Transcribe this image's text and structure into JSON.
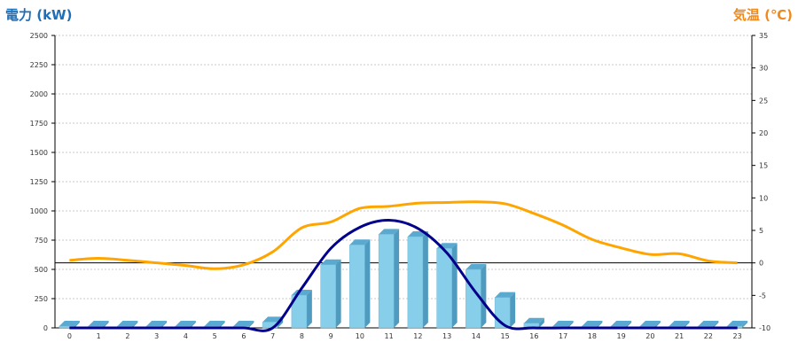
{
  "chart_data": {
    "type": "bar",
    "left_axis_title": "電力 (kW)",
    "right_axis_title": "気温 (℃)",
    "categories": [
      "0",
      "1",
      "2",
      "3",
      "4",
      "5",
      "6",
      "7",
      "8",
      "9",
      "10",
      "11",
      "12",
      "13",
      "14",
      "15",
      "16",
      "17",
      "18",
      "19",
      "20",
      "21",
      "22",
      "23"
    ],
    "ylim_left": [
      0,
      2500
    ],
    "yticks_left": [
      0,
      250,
      500,
      750,
      1000,
      1250,
      1500,
      1750,
      2000,
      2250,
      2500
    ],
    "ylim_right": [
      -10,
      35
    ],
    "yticks_right": [
      -10,
      -5,
      0,
      5,
      10,
      15,
      20,
      25,
      30,
      35
    ],
    "grid": true,
    "series": [
      {
        "type": "bar",
        "axis": "left",
        "values": [
          0,
          0,
          0,
          0,
          0,
          0,
          0,
          50,
          280,
          540,
          710,
          800,
          780,
          680,
          500,
          260,
          40,
          0,
          0,
          0,
          0,
          0,
          0,
          0
        ]
      },
      {
        "type": "line",
        "axis": "left",
        "values": [
          0,
          0,
          0,
          0,
          0,
          0,
          0,
          0,
          340,
          680,
          860,
          920,
          850,
          640,
          300,
          20,
          0,
          0,
          0,
          0,
          0,
          0,
          0,
          0
        ]
      },
      {
        "type": "line",
        "axis": "right",
        "values": [
          0.4,
          0.7,
          0.4,
          0,
          -0.4,
          -0.9,
          -0.3,
          1.7,
          5.4,
          6.3,
          8.4,
          8.7,
          9.2,
          9.3,
          9.4,
          9.1,
          7.6,
          5.8,
          3.6,
          2.3,
          1.3,
          1.4,
          0.3,
          0
        ]
      }
    ],
    "colors": {
      "bar_front": "#87ceeb",
      "bar_side": "#4f9bbf",
      "bar_top": "#5aa9d0",
      "power_line": "#00008b",
      "temp_line": "#ffa500",
      "zero_line": "#000000",
      "left_title": "#1f6fb8",
      "right_title": "#f08a1c"
    }
  }
}
